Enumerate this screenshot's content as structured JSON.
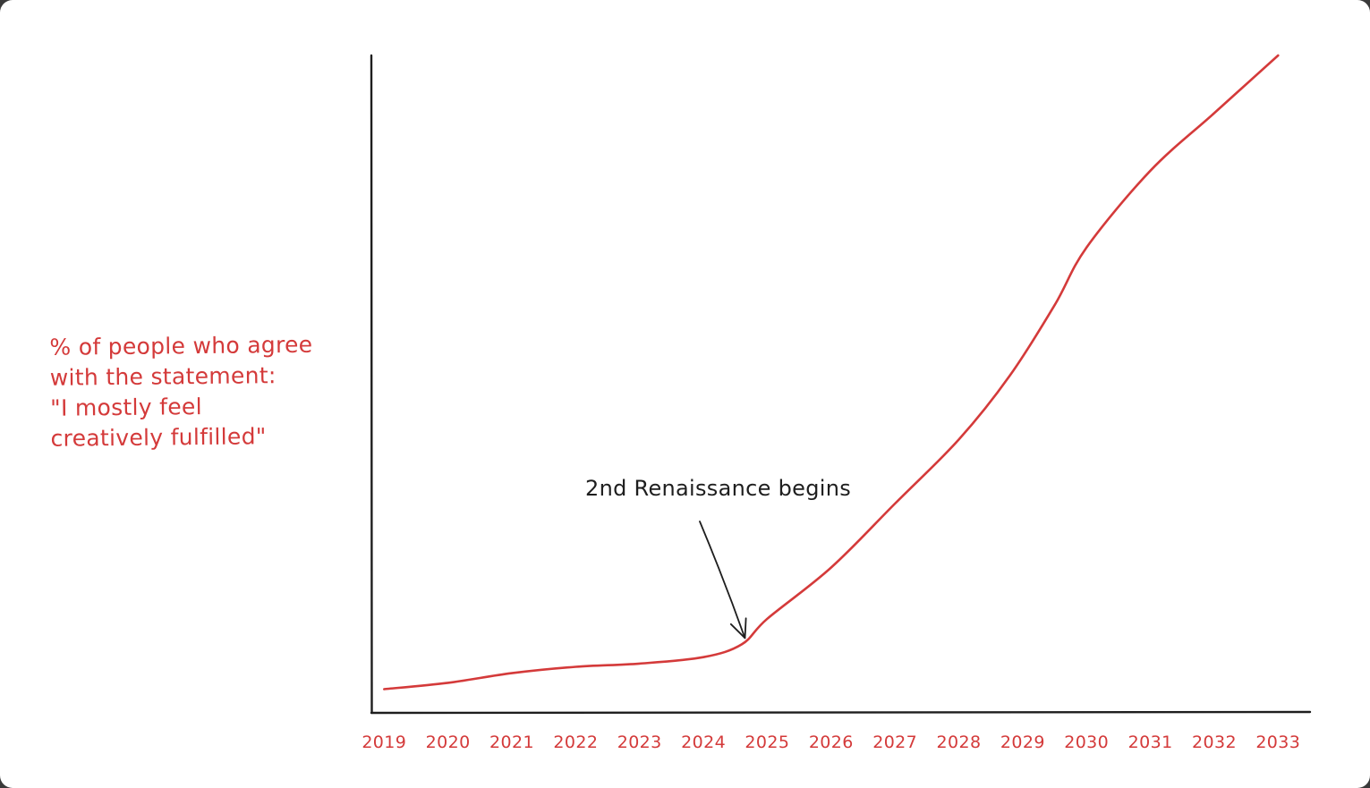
{
  "chart_data": {
    "type": "line",
    "title": "",
    "ylabel_lines": [
      "% of people who agree",
      "with the statement:",
      "\"I mostly feel",
      "creatively fulfilled\""
    ],
    "xlabel": "",
    "categories": [
      "2019",
      "2020",
      "2021",
      "2022",
      "2023",
      "2024",
      "2025",
      "2026",
      "2027",
      "2028",
      "2029",
      "2030",
      "2031",
      "2032",
      "2033"
    ],
    "x": [
      2019.0,
      2020.0,
      2021.0,
      2022.0,
      2023.0,
      2024.0,
      2024.6,
      2025.0,
      2026.0,
      2027.0,
      2028.0,
      2028.8,
      2029.5,
      2030.0,
      2031.0,
      2032.0,
      2033.0
    ],
    "series": [
      {
        "values": [
          1.0,
          2.0,
          3.5,
          4.5,
          5.0,
          6.0,
          8.0,
          12.0,
          20.0,
          30.0,
          40.0,
          50.0,
          61.0,
          70.0,
          82.0,
          91.0,
          100.0
        ]
      }
    ],
    "xlim": [
      2018.8,
      2033.5
    ],
    "ylim": [
      -2.7,
      100
    ],
    "grid": false,
    "annotations": [
      {
        "text": "2nd Renaissance begins",
        "x": 2024.65,
        "y": 9.0
      }
    ],
    "colors": {
      "line": "#d43a3a",
      "axis": "#1e1e1e",
      "annotation": "#1e1e1e",
      "labels": "#d43a3a"
    }
  }
}
